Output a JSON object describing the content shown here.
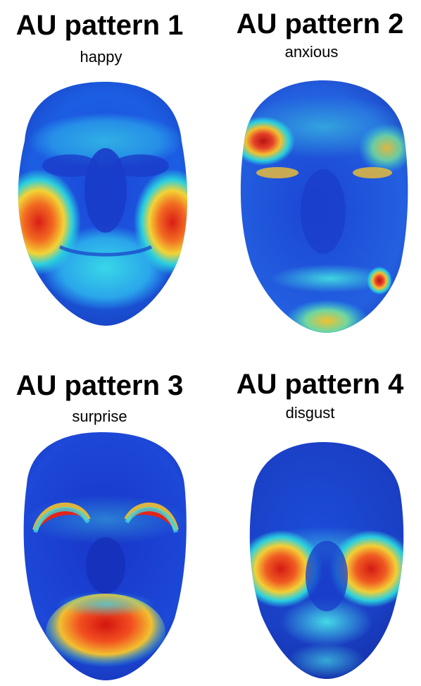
{
  "panels": [
    {
      "title": "AU pattern 1",
      "subtitle": "happy",
      "face_icon": "face-heatmap-icon"
    },
    {
      "title": "AU pattern 2",
      "subtitle": "anxious",
      "face_icon": "face-heatmap-icon"
    },
    {
      "title": "AU pattern 3",
      "subtitle": "surprise",
      "face_icon": "face-heatmap-icon"
    },
    {
      "title": "AU pattern 4",
      "subtitle": "disgust",
      "face_icon": "face-heatmap-icon"
    }
  ],
  "colors": {
    "base": "#1f3fd6",
    "mid": "#22c6e8",
    "warm": "#f1d535",
    "hot": "#e5231a"
  }
}
